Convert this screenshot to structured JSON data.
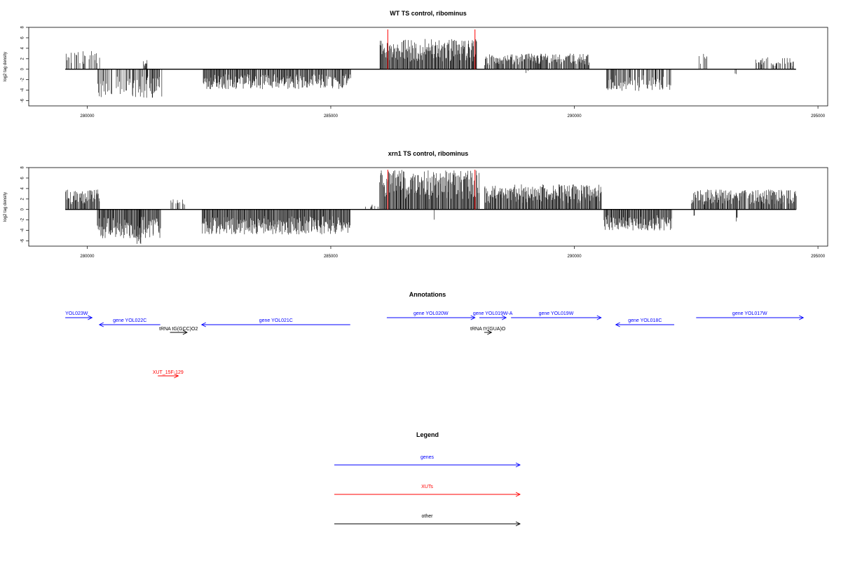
{
  "chart_data": [
    {
      "type": "bar",
      "title": "WT TS control, ribominus",
      "ylabel": "log2 tag density",
      "xlim": [
        278800,
        295200
      ],
      "ylim": [
        -7,
        8
      ],
      "xticks": [
        280000,
        285000,
        290000,
        295000
      ],
      "yticks": [
        8,
        6,
        4,
        2,
        0,
        -2,
        -4,
        -6
      ],
      "baseline": {
        "x": [
          279550,
          294550
        ],
        "y": 0
      },
      "markers_red": [
        {
          "x": 286170,
          "y": [
            0,
            7.6
          ]
        },
        {
          "x": 287960,
          "y": [
            0,
            7.6
          ]
        }
      ],
      "series": [
        {
          "segments": [
            {
              "x": [
                279550,
                280250
              ],
              "amp": 3.5,
              "sign": 1,
              "density": 0.35
            },
            {
              "x": [
                280200,
                281550
              ],
              "amp": 5.5,
              "sign": -1,
              "density": 0.6
            },
            {
              "x": [
                281150,
                281250
              ],
              "amp": 1.8,
              "sign": 1,
              "density": 0.5
            },
            {
              "x": [
                282350,
                285400
              ],
              "amp": 3.8,
              "sign": -1,
              "density": 0.95
            },
            {
              "x": [
                286000,
                288000
              ],
              "amp": 5.8,
              "sign": 1,
              "density": 1.0
            },
            {
              "x": [
                288150,
                290300
              ],
              "amp": 3.0,
              "sign": 1,
              "density": 0.8
            },
            {
              "x": [
                289000,
                289050
              ],
              "amp": 1.0,
              "sign": -1,
              "density": 0.3
            },
            {
              "x": [
                290650,
                291980
              ],
              "amp": 4.2,
              "sign": -1,
              "density": 0.6
            },
            {
              "x": [
                292500,
                292750
              ],
              "amp": 3.2,
              "sign": 1,
              "density": 0.35
            },
            {
              "x": [
                293300,
                293320
              ],
              "amp": 1.5,
              "sign": -1,
              "density": 1.0
            },
            {
              "x": [
                293700,
                294500
              ],
              "amp": 2.3,
              "sign": 1,
              "density": 0.5
            }
          ]
        }
      ]
    },
    {
      "type": "bar",
      "title": "xrn1 TS control, ribominus",
      "ylabel": "log2 tag density",
      "xlim": [
        278800,
        295200
      ],
      "ylim": [
        -7,
        8
      ],
      "xticks": [
        280000,
        285000,
        290000,
        295000
      ],
      "yticks": [
        8,
        6,
        4,
        2,
        0,
        -2,
        -4,
        -6
      ],
      "baseline": {
        "x": [
          279550,
          294550
        ],
        "y": 0
      },
      "markers_red": [
        {
          "x": 286170,
          "y": [
            0,
            7.6
          ]
        },
        {
          "x": 287960,
          "y": [
            0,
            7.6
          ]
        }
      ],
      "series": [
        {
          "segments": [
            {
              "x": [
                279550,
                280250
              ],
              "amp": 3.8,
              "sign": 1,
              "density": 0.9
            },
            {
              "x": [
                280200,
                281500
              ],
              "amp": 5.5,
              "sign": -1,
              "density": 1.0
            },
            {
              "x": [
                281000,
                281100
              ],
              "amp": 6.8,
              "sign": -1,
              "density": 0.5
            },
            {
              "x": [
                281700,
                282000
              ],
              "amp": 2.0,
              "sign": 1,
              "density": 0.5
            },
            {
              "x": [
                282350,
                285400
              ],
              "amp": 4.8,
              "sign": -1,
              "density": 1.0
            },
            {
              "x": [
                285700,
                286000
              ],
              "amp": 1.2,
              "sign": 1,
              "density": 0.4
            },
            {
              "x": [
                286000,
                288050
              ],
              "amp": 7.6,
              "sign": 1,
              "density": 1.0
            },
            {
              "x": [
                287100,
                287150
              ],
              "amp": 2.5,
              "sign": -1,
              "density": 0.3
            },
            {
              "x": [
                288150,
                290550
              ],
              "amp": 4.8,
              "sign": 1,
              "density": 1.0
            },
            {
              "x": [
                289350,
                289400
              ],
              "amp": 2.3,
              "sign": -1,
              "density": 0.3
            },
            {
              "x": [
                290600,
                292000
              ],
              "amp": 4.0,
              "sign": -1,
              "density": 1.0
            },
            {
              "x": [
                292400,
                294550
              ],
              "amp": 3.8,
              "sign": 1,
              "density": 0.9
            },
            {
              "x": [
                292450,
                292500
              ],
              "amp": 2.5,
              "sign": -1,
              "density": 0.3
            },
            {
              "x": [
                293300,
                293350
              ],
              "amp": 2.5,
              "sign": -1,
              "density": 0.3
            }
          ]
        }
      ]
    }
  ],
  "annotations": {
    "title": "Annotations",
    "features": [
      {
        "label": "YOL023W",
        "x": [
          279550,
          280100
        ],
        "strand": "+",
        "row": 0,
        "color": "#0000ff"
      },
      {
        "label": "gene YOL022C",
        "x": [
          280250,
          281500
        ],
        "strand": "-",
        "row": 1,
        "color": "#0000ff"
      },
      {
        "label": "tRNA tG(GCC)O2",
        "x": [
          281700,
          282050
        ],
        "strand": "+",
        "row": 2,
        "color": "#000000"
      },
      {
        "label": "gene YOL021C",
        "x": [
          282350,
          285400
        ],
        "strand": "-",
        "row": 1,
        "color": "#0000ff"
      },
      {
        "label": "gene YOL020W",
        "x": [
          286150,
          287960
        ],
        "strand": "+",
        "row": 0,
        "color": "#0000ff"
      },
      {
        "label": "gene YOL019W-A",
        "x": [
          288050,
          288600
        ],
        "strand": "+",
        "row": 0,
        "color": "#0000ff"
      },
      {
        "label": "tRNA tY(GUA)O",
        "x": [
          288150,
          288300
        ],
        "strand": "+",
        "row": 2,
        "color": "#000000"
      },
      {
        "label": "gene YOL019W",
        "x": [
          288700,
          290550
        ],
        "strand": "+",
        "row": 0,
        "color": "#0000ff"
      },
      {
        "label": "gene YOL018C",
        "x": [
          290850,
          292050
        ],
        "strand": "-",
        "row": 1,
        "color": "#0000ff"
      },
      {
        "label": "gene YOL017W",
        "x": [
          292500,
          294700
        ],
        "strand": "+",
        "row": 0,
        "color": "#0000ff"
      },
      {
        "label": "XUT_15F-129",
        "x": [
          281450,
          281870
        ],
        "strand": "+",
        "row": 4,
        "color": "#ff0000"
      }
    ]
  },
  "legend": {
    "title": "Legend",
    "items": [
      {
        "label": "genes",
        "color": "#0000ff"
      },
      {
        "label": "XUTs",
        "color": "#ff0000"
      },
      {
        "label": "other",
        "color": "#000000"
      }
    ]
  }
}
